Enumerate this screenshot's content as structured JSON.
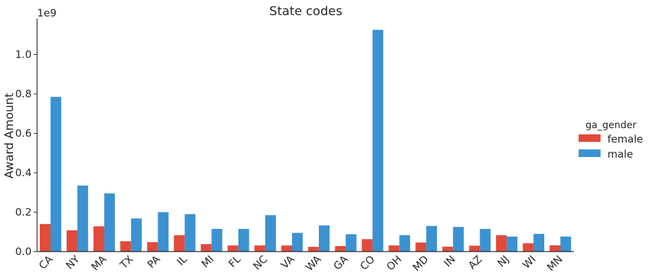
{
  "chart_data": {
    "type": "bar",
    "title": "State codes",
    "xlabel": "",
    "ylabel": "Award Amount",
    "offset_label": "1e9",
    "scale": 1000000000,
    "ylim": [
      0,
      1.18
    ],
    "yticks": [
      0.0,
      0.2,
      0.4,
      0.6,
      0.8,
      1.0
    ],
    "ytick_labels": [
      "0.0",
      "0.2",
      "0.4",
      "0.6",
      "0.8",
      "1.0"
    ],
    "categories": [
      "CA",
      "NY",
      "MA",
      "TX",
      "PA",
      "IL",
      "MI",
      "FL",
      "NC",
      "VA",
      "WA",
      "GA",
      "CO",
      "OH",
      "MD",
      "IN",
      "AZ",
      "NJ",
      "WI",
      "MN"
    ],
    "legend_title": "ga_gender",
    "legend_position": "right",
    "series": [
      {
        "name": "female",
        "color": "#e24a3b",
        "values": [
          0.14,
          0.108,
          0.128,
          0.052,
          0.048,
          0.083,
          0.038,
          0.031,
          0.031,
          0.031,
          0.024,
          0.028,
          0.063,
          0.031,
          0.046,
          0.025,
          0.03,
          0.083,
          0.042,
          0.032
        ]
      },
      {
        "name": "male",
        "color": "#3b92d0",
        "values": [
          0.785,
          0.335,
          0.295,
          0.168,
          0.2,
          0.19,
          0.115,
          0.115,
          0.185,
          0.095,
          0.133,
          0.088,
          1.125,
          0.083,
          0.13,
          0.125,
          0.115,
          0.076,
          0.09,
          0.076
        ]
      }
    ]
  }
}
